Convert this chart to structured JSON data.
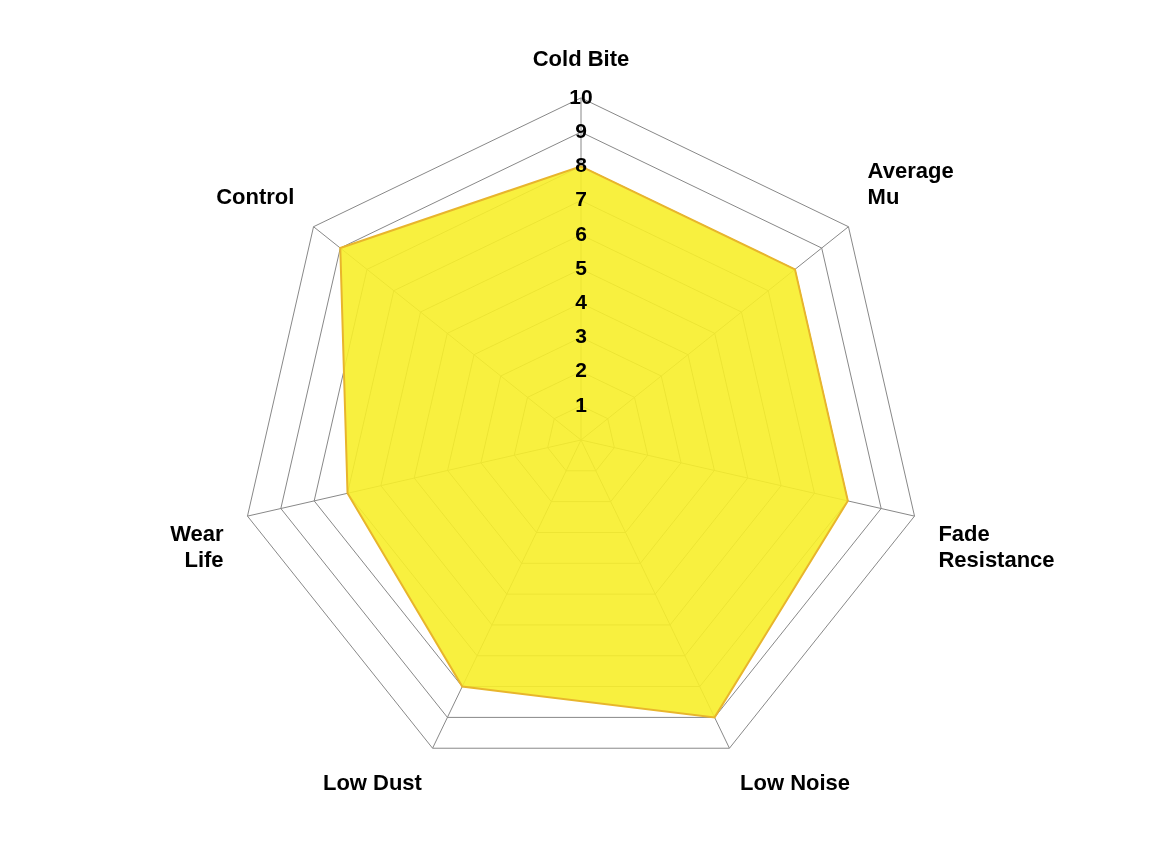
{
  "chart_data": {
    "type": "radar",
    "categories": [
      "Cold Bite",
      "Average\nMu",
      "Fade\nResistance",
      "Low Noise",
      "Low Dust",
      "Wear\nLife",
      "Control"
    ],
    "series": [
      {
        "color": "#f7ee2a",
        "values": [
          8,
          8,
          8,
          9,
          8,
          7,
          9
        ]
      }
    ],
    "ylim": [
      0,
      10
    ],
    "yticks": [
      1,
      2,
      3,
      4,
      5,
      6,
      7,
      8,
      9,
      10
    ],
    "legend": false,
    "marker": "none",
    "grid": true
  }
}
